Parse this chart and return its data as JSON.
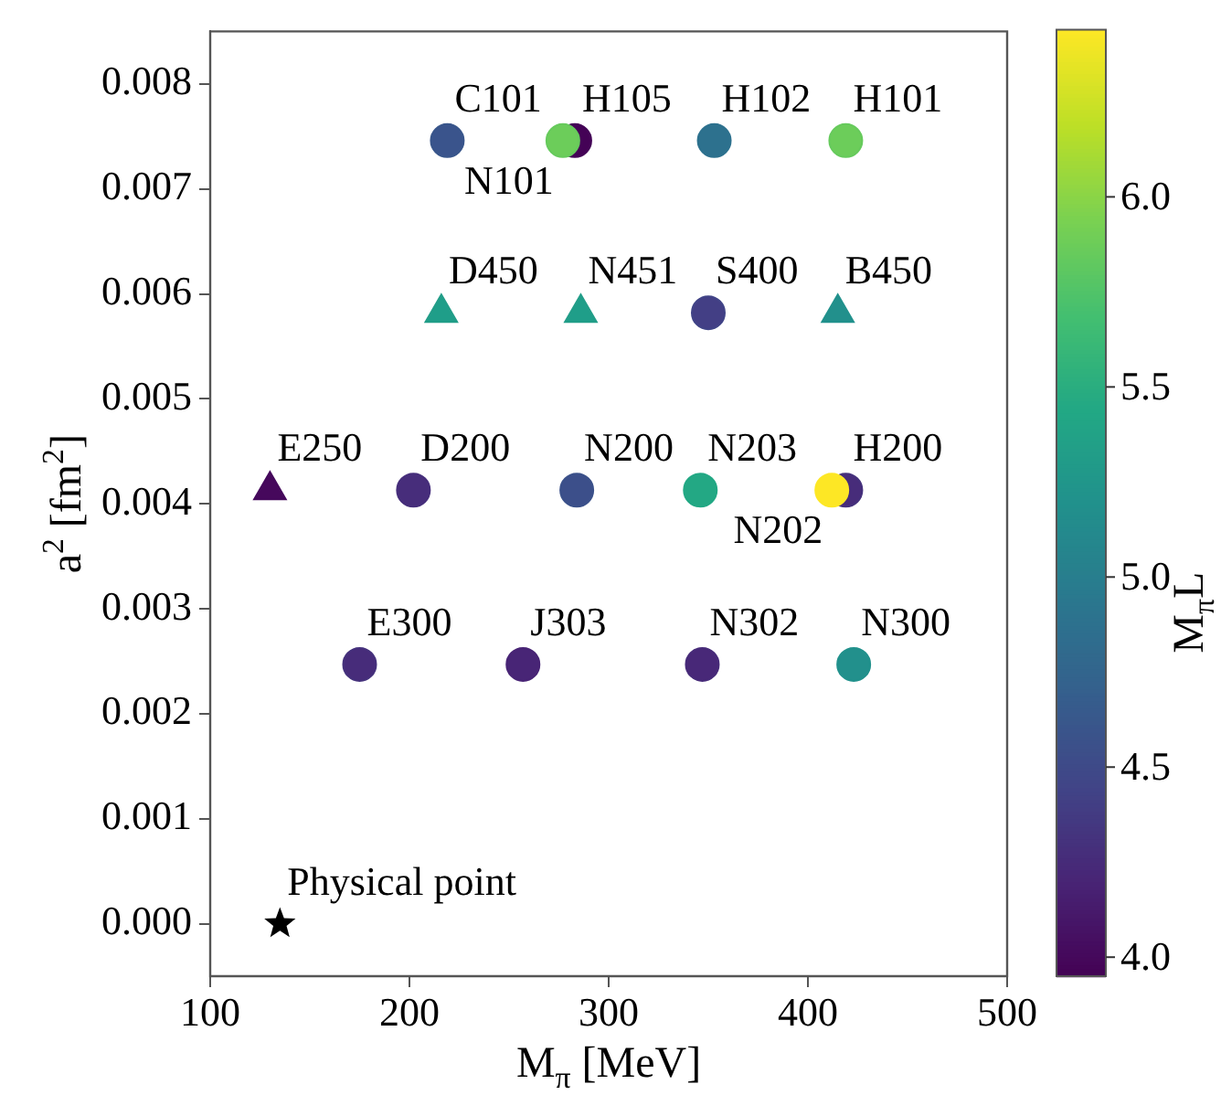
{
  "chart_data": {
    "type": "scatter",
    "xlabel": "M$_{π}$ [MeV]",
    "ylabel": "a$^{2}$ [fm$^{2}$]",
    "clabel": "M$_{π}$L",
    "xlim": [
      100,
      500
    ],
    "xticks": [
      100,
      200,
      300,
      400,
      500
    ],
    "ylim": [
      -0.0005,
      0.0085
    ],
    "yticks": [
      {
        "value": 0,
        "label": "0.000"
      },
      {
        "value": 0.001,
        "label": "0.001"
      },
      {
        "value": 0.002,
        "label": "0.002"
      },
      {
        "value": 0.003,
        "label": "0.003"
      },
      {
        "value": 0.004,
        "label": "0.004"
      },
      {
        "value": 0.005,
        "label": "0.005"
      },
      {
        "value": 0.006,
        "label": "0.006"
      },
      {
        "value": 0.007,
        "label": "0.007"
      },
      {
        "value": 0.008,
        "label": "0.008"
      }
    ],
    "clim": [
      3.95,
      6.44
    ],
    "cticks": [
      {
        "value": 4,
        "label": "4.0"
      },
      {
        "value": 4.5,
        "label": "4.5"
      },
      {
        "value": 5,
        "label": "5.0"
      },
      {
        "value": 5.5,
        "label": "5.5"
      },
      {
        "value": 6,
        "label": "6.0"
      }
    ],
    "legend": false,
    "grid": false,
    "series": [
      {
        "marker": "circle",
        "x": [
          219,
          283,
          277,
          353,
          419,
          350,
          202,
          284,
          346,
          419,
          412,
          175,
          257,
          347,
          423
        ],
        "values": [
          0.00746,
          0.00746,
          0.00746,
          0.00746,
          0.00746,
          0.00582,
          0.00413,
          0.00413,
          0.00413,
          0.00413,
          0.00413,
          0.00247,
          0.00247,
          0.00247,
          0.00247
        ],
        "cvalues": [
          4.61,
          3.97,
          5.85,
          4.88,
          5.85,
          4.45,
          4.28,
          4.57,
          5.44,
          4.3,
          6.44,
          4.3,
          4.2,
          4.25,
          5.2
        ],
        "colors": [
          "#3a548c",
          "#440256",
          "#6ccd5a",
          "#2d718e",
          "#6ccd5a",
          "#433f85",
          "#472d7b",
          "#3c4f8a",
          "#23a884",
          "#472c7a",
          "#fde725",
          "#472c7a",
          "#482576",
          "#482878",
          "#22908c"
        ]
      },
      {
        "marker": "triangle",
        "x": [
          130,
          216,
          286,
          415
        ],
        "values": [
          0.00413,
          0.00582,
          0.00582,
          0.00582
        ],
        "cvalues": [
          4.01,
          5.32,
          5.32,
          5.2
        ],
        "colors": [
          "#46085c",
          "#1f9e89",
          "#1f9e89",
          "#22908c"
        ]
      },
      {
        "marker": "star",
        "color": "#000000",
        "x": [
          135
        ],
        "values": [
          0
        ]
      }
    ],
    "annotations": [
      {
        "text": "C101",
        "x": 219,
        "y": 0.00746
      },
      {
        "text": "H105",
        "x": 283,
        "y": 0.00746
      },
      {
        "text": "N101",
        "x": 277,
        "y": 0.00746
      },
      {
        "text": "H102",
        "x": 353,
        "y": 0.00746
      },
      {
        "text": "H101",
        "x": 419,
        "y": 0.00746
      },
      {
        "text": "D450",
        "x": 216,
        "y": 0.00582
      },
      {
        "text": "N451",
        "x": 286,
        "y": 0.00582
      },
      {
        "text": "S400",
        "x": 350,
        "y": 0.00582
      },
      {
        "text": "B450",
        "x": 415,
        "y": 0.00582
      },
      {
        "text": "E250",
        "x": 130,
        "y": 0.00413
      },
      {
        "text": "D200",
        "x": 202,
        "y": 0.00413
      },
      {
        "text": "N200",
        "x": 284,
        "y": 0.00413
      },
      {
        "text": "N203",
        "x": 346,
        "y": 0.00413
      },
      {
        "text": "N202",
        "x": 412,
        "y": 0.00413
      },
      {
        "text": "H200",
        "x": 419,
        "y": 0.00413
      },
      {
        "text": "E300",
        "x": 175,
        "y": 0.00247
      },
      {
        "text": "J303",
        "x": 257,
        "y": 0.00247
      },
      {
        "text": "N302",
        "x": 347,
        "y": 0.00247
      },
      {
        "text": "N300",
        "x": 423,
        "y": 0.00247
      },
      {
        "text": "Physical point",
        "x": 135,
        "y": 0
      }
    ]
  }
}
